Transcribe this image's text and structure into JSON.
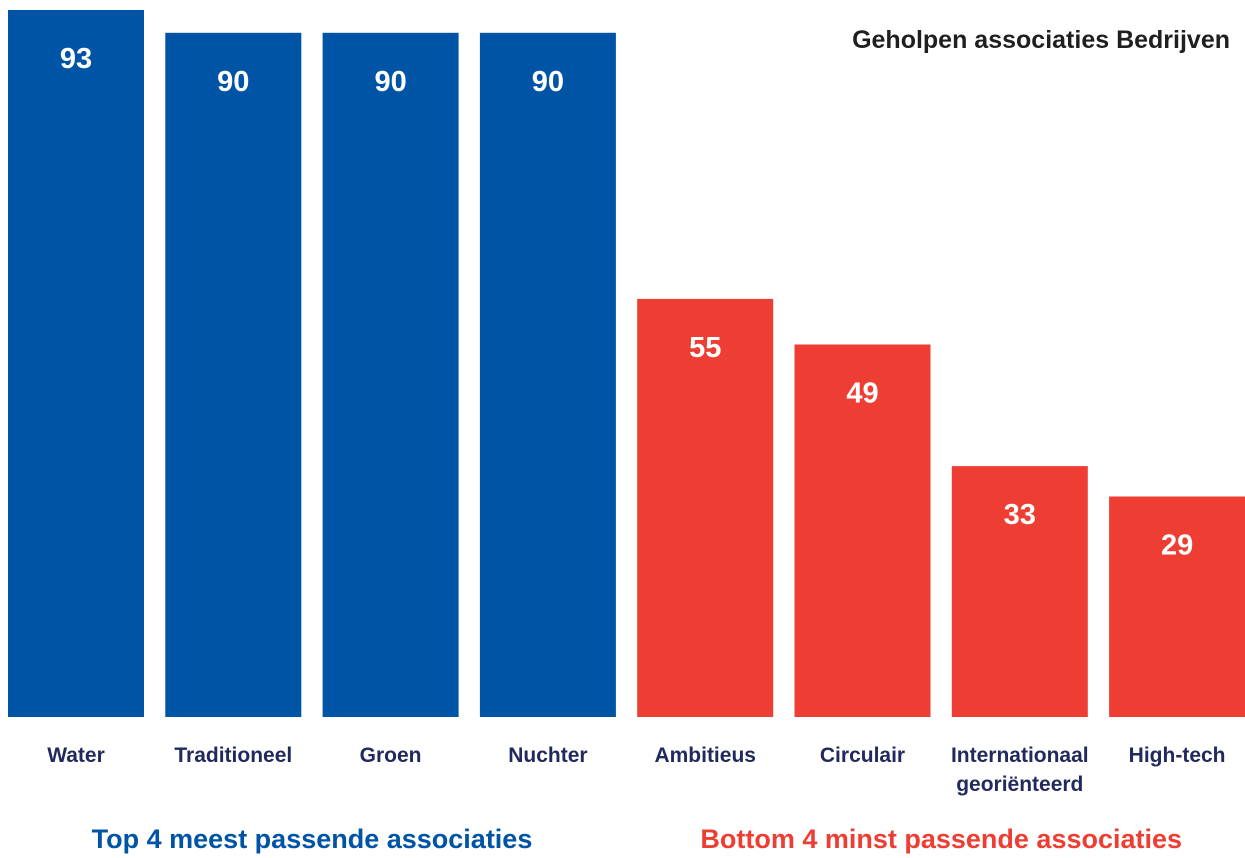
{
  "chart_data": {
    "type": "bar",
    "title": "Geholpen associaties Bedrijven",
    "xlabel": "",
    "ylabel": "",
    "ylim": [
      0,
      93
    ],
    "grid": false,
    "legend": "none",
    "categories": [
      "Water",
      "Traditioneel",
      "Groen",
      "Nuchter",
      "Ambitieus",
      "Circulair",
      "Internationaal georiënteerd",
      "High-tech"
    ],
    "values": [
      93,
      90,
      90,
      90,
      55,
      49,
      33,
      29
    ],
    "category_groups": [
      {
        "label": "Top 4 meest passende associaties",
        "color": "#0054a6",
        "categories": [
          "Water",
          "Traditioneel",
          "Groen",
          "Nuchter"
        ]
      },
      {
        "label": "Bottom 4 minst passende associaties",
        "color": "#ee3e33",
        "categories": [
          "Ambitieus",
          "Circulair",
          "Internationaal georiënteerd",
          "High-tech"
        ]
      }
    ]
  },
  "colors": {
    "top_bar": "#0054a6",
    "bottom_bar": "#ee3e33",
    "category_text": "#22295c",
    "group_text": "#0054a6",
    "title_text": "#1f1f1f",
    "value_text": "#ffffff"
  }
}
